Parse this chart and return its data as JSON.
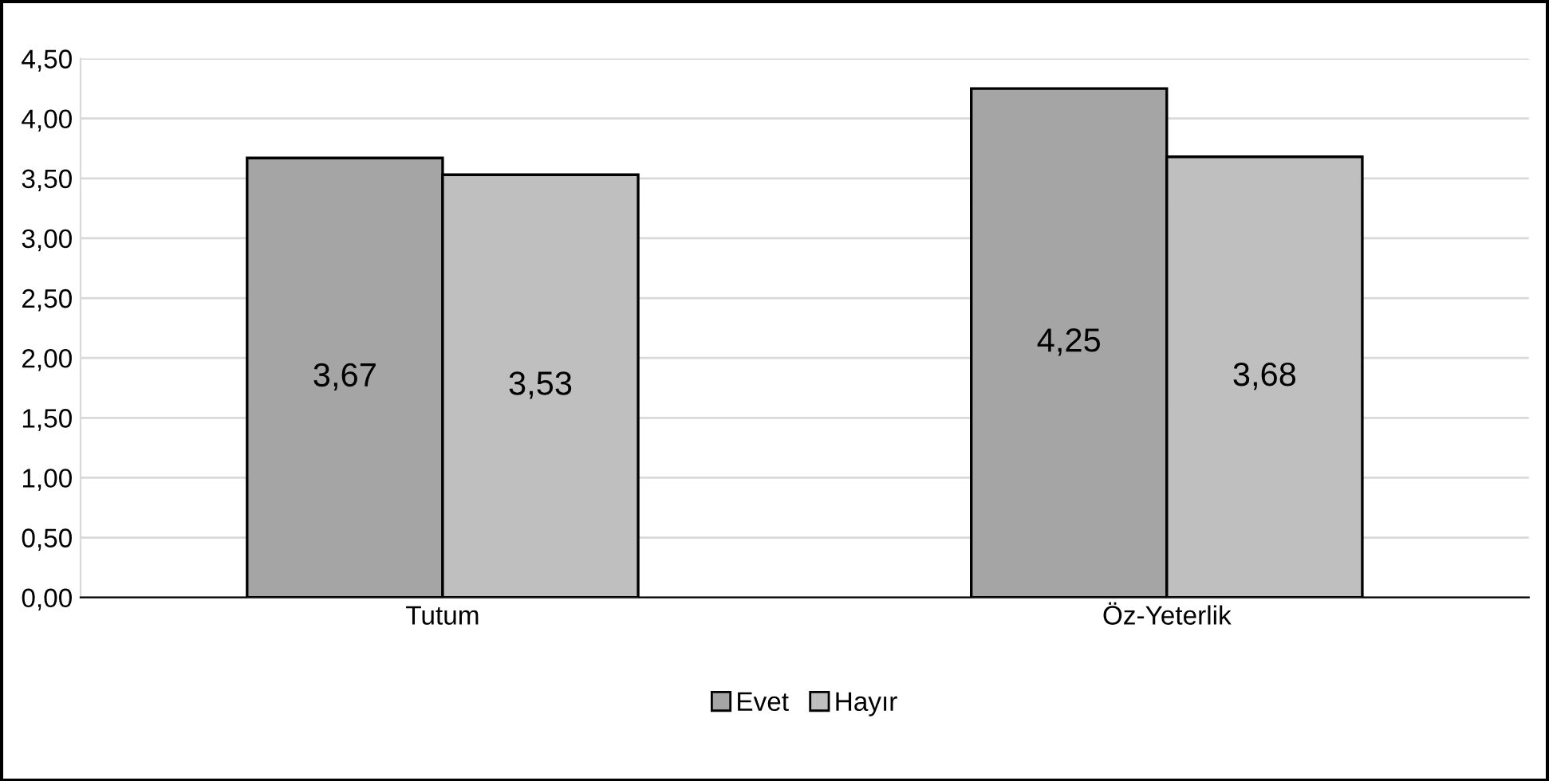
{
  "chart_data": {
    "type": "bar",
    "categories": [
      "Tutum",
      "Öz-Yeterlik"
    ],
    "series": [
      {
        "name": "Evet",
        "color": "#a5a5a5",
        "values": [
          3.67,
          4.25
        ],
        "value_labels": [
          "3,67",
          "4,25"
        ]
      },
      {
        "name": "Hayır",
        "color": "#bfbfbf",
        "values": [
          3.53,
          3.68
        ],
        "value_labels": [
          "3,53",
          "3,68"
        ]
      }
    ],
    "ylim": [
      0,
      4.5
    ],
    "yticks": [
      {
        "value": 0,
        "label": "0,00"
      },
      {
        "value": 0.5,
        "label": "0,50"
      },
      {
        "value": 1,
        "label": "1,00"
      },
      {
        "value": 1.5,
        "label": "1,50"
      },
      {
        "value": 2,
        "label": "2,00"
      },
      {
        "value": 2.5,
        "label": "2,50"
      },
      {
        "value": 3,
        "label": "3,00"
      },
      {
        "value": 3.5,
        "label": "3,50"
      },
      {
        "value": 4,
        "label": "4,00"
      },
      {
        "value": 4.5,
        "label": "4,50"
      }
    ],
    "grid": "y",
    "legend": "bottom"
  }
}
